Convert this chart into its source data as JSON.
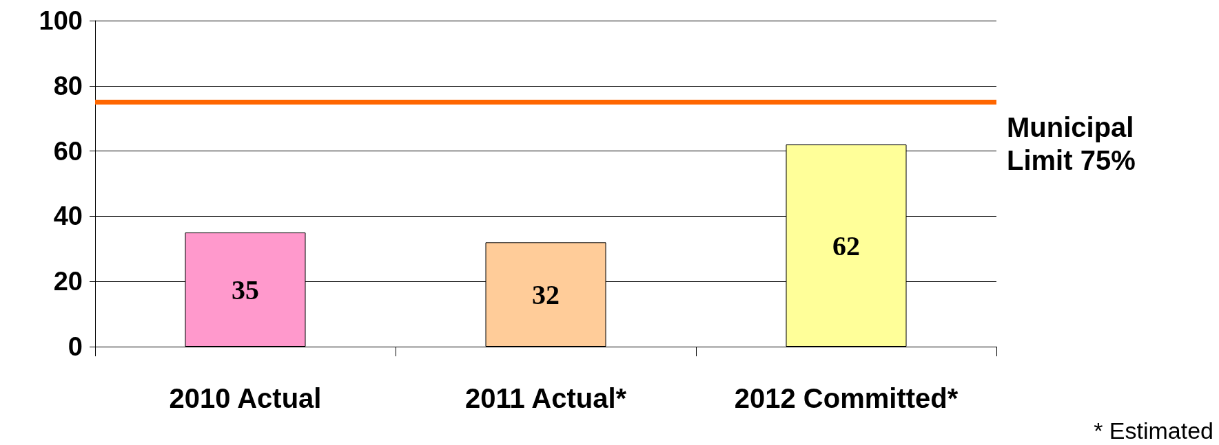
{
  "chart_data": {
    "type": "bar",
    "categories": [
      "2010 Actual",
      "2011 Actual*",
      "2012 Committed*"
    ],
    "values": [
      35,
      32,
      62
    ],
    "colors": [
      "#ff99cc",
      "#ffcc99",
      "#ffff99"
    ],
    "ylim": [
      0,
      100
    ],
    "yticks": [
      0,
      20,
      40,
      60,
      80,
      100
    ],
    "grid": "y",
    "data_labels": true,
    "ref_lines": [
      {
        "axis": "y",
        "value": 75,
        "label": "Municipal Limit 75%",
        "color": "#ff6600",
        "line_style": "solid"
      }
    ],
    "annotations": [
      "* Estimated"
    ]
  }
}
